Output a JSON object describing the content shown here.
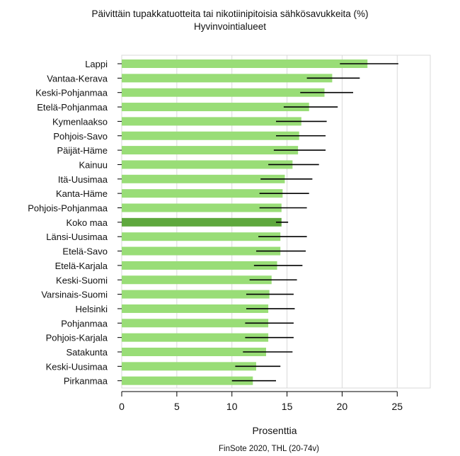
{
  "chart_data": {
    "type": "bar",
    "orientation": "horizontal",
    "title": "Päivittäin tupakkatuotteita tai nikotiinipitoisia sähkösavukkeita (%)",
    "subtitle": "Hyvinvointialueet",
    "xlabel": "Prosenttia",
    "source": "FinSote 2020, THL (20-74v)",
    "xlim": [
      0,
      28
    ],
    "xticks": [
      "0",
      "5",
      "10",
      "15",
      "20",
      "25"
    ],
    "grid": true,
    "colors": {
      "bar": "#99dd77",
      "highlight": "#5ea83d",
      "errorbar": "#000000",
      "grid": "#d9d9d9"
    },
    "highlight_category": "Koko maa",
    "categories": [
      "Lappi",
      "Vantaa-Kerava",
      "Keski-Pohjanmaa",
      "Etelä-Pohjanmaa",
      "Kymenlaakso",
      "Pohjois-Savo",
      "Päijät-Häme",
      "Kainuu",
      "Itä-Uusimaa",
      "Kanta-Häme",
      "Pohjois-Pohjanmaa",
      "Koko maa",
      "Länsi-Uusimaa",
      "Etelä-Savo",
      "Etelä-Karjala",
      "Keski-Suomi",
      "Varsinais-Suomi",
      "Helsinki",
      "Pohjanmaa",
      "Pohjois-Karjala",
      "Satakunta",
      "Keski-Uusimaa",
      "Pirkanmaa"
    ],
    "values": [
      22.3,
      19.1,
      18.4,
      17.0,
      16.3,
      16.1,
      16.0,
      15.5,
      14.8,
      14.6,
      14.5,
      14.5,
      14.4,
      14.4,
      14.1,
      13.6,
      13.4,
      13.3,
      13.3,
      13.3,
      13.1,
      12.2,
      11.9
    ],
    "ci_low": [
      19.8,
      16.8,
      16.2,
      14.7,
      14.0,
      14.0,
      13.8,
      13.3,
      12.6,
      12.5,
      12.5,
      14.0,
      12.4,
      12.2,
      12.0,
      11.6,
      11.3,
      11.3,
      11.2,
      11.2,
      11.0,
      10.3,
      10.0
    ],
    "ci_high": [
      25.1,
      21.6,
      21.0,
      19.6,
      18.6,
      18.5,
      18.5,
      17.9,
      17.3,
      17.0,
      16.8,
      15.1,
      16.8,
      16.7,
      16.4,
      15.9,
      15.6,
      15.7,
      15.6,
      15.6,
      15.5,
      14.4,
      14.0
    ]
  }
}
